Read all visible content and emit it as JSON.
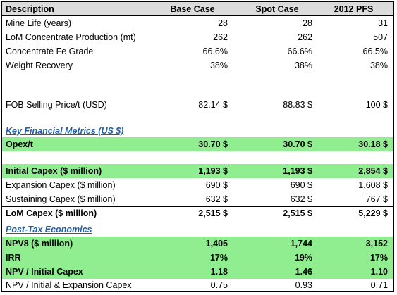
{
  "header": {
    "description": "Description",
    "base": "Base Case",
    "spot": "Spot Case",
    "pfs": "2012 PFS"
  },
  "rows": [
    {
      "desc": "Mine Life (years)",
      "base": "28",
      "spot": "28",
      "pfs": "31"
    },
    {
      "desc": "LoM Concentrate Production (mt)",
      "base": "262",
      "spot": "262",
      "pfs": "507"
    },
    {
      "desc": "Concentrate Fe Grade",
      "base": "66.6%",
      "spot": "66.6%",
      "pfs": "66.5%"
    },
    {
      "desc": "Weight Recovery",
      "base": "38%",
      "spot": "38%",
      "pfs": "38%"
    },
    {
      "desc": "FOB Selling Price/t (USD)",
      "base": "82.14  $",
      "spot": "88.83  $",
      "pfs": "100  $"
    },
    {
      "desc": "Key Financial Metrics (US $)"
    },
    {
      "desc": "Opex/t",
      "base": "30.70  $",
      "spot": "30.70  $",
      "pfs": "30.18  $"
    },
    {
      "desc": "Initial Capex ($ million)",
      "base": "1,193  $",
      "spot": "1,193  $",
      "pfs": "2,854  $"
    },
    {
      "desc": "Expansion Capex ($ million)",
      "base": "690  $",
      "spot": "690  $",
      "pfs": "1,608  $"
    },
    {
      "desc": "Sustaining Capex ($ million)",
      "base": "632  $",
      "spot": "632  $",
      "pfs": "767  $"
    },
    {
      "desc": "LoM Capex ($ million)",
      "base": "2,515  $",
      "spot": "2,515  $",
      "pfs": "5,229  $"
    },
    {
      "desc": "Post-Tax Economics"
    },
    {
      "desc": "NPV8 ($ million)",
      "base": "1,405",
      "spot": "1,744",
      "pfs": "3,152"
    },
    {
      "desc": "IRR",
      "base": "17%",
      "spot": "19%",
      "pfs": "17%"
    },
    {
      "desc": "NPV / Initial Capex",
      "base": "1.18",
      "spot": "1.46",
      "pfs": "1.10"
    },
    {
      "desc": "NPV / Initial & Expansion Capex",
      "base": "0.75",
      "spot": "0.93",
      "pfs": "0.71"
    }
  ],
  "colors": {
    "highlight": "#90ee90",
    "header_bg": "#dcdcdc",
    "section_text": "#1f5faa"
  }
}
